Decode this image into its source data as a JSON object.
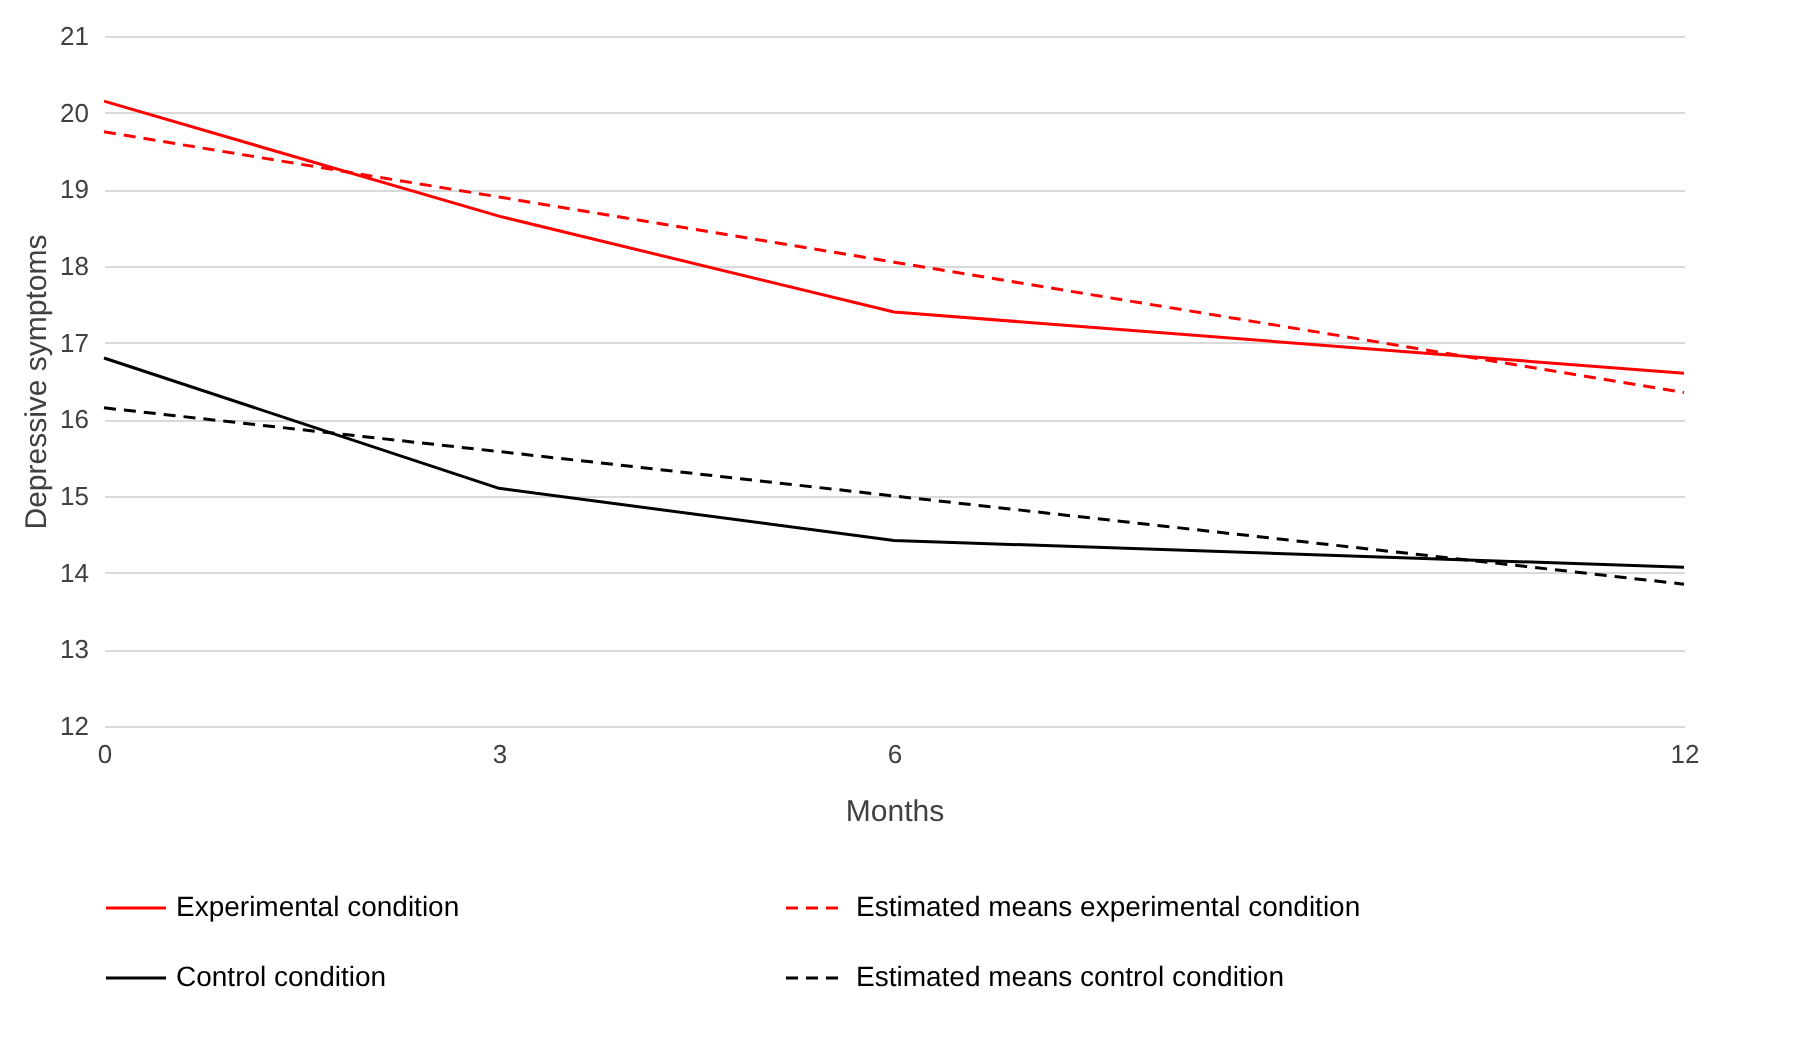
{
  "chart_data": {
    "type": "line",
    "xlabel": "Months",
    "ylabel": "Depressive symptoms",
    "x": [
      0,
      3,
      6,
      12
    ],
    "xlim": [
      0,
      12
    ],
    "xticks": [
      0,
      3,
      6,
      12
    ],
    "ylim": [
      12,
      21
    ],
    "yticks": [
      12,
      13,
      14,
      15,
      16,
      17,
      18,
      19,
      20,
      21
    ],
    "grid": "y",
    "legend": "bottom",
    "marker": "none",
    "series": [
      {
        "name": "Experimental condition",
        "color": "#ff0000",
        "line_style": "solid",
        "values": [
          20.15,
          18.65,
          17.4,
          16.6
        ]
      },
      {
        "name": "Estimated means experimental condition",
        "color": "#ff0000",
        "line_style": "dashed",
        "values": [
          19.75,
          18.9,
          18.05,
          16.35
        ]
      },
      {
        "name": "Control condition",
        "color": "#000000",
        "line_style": "solid",
        "values": [
          16.8,
          15.1,
          14.42,
          14.07
        ]
      },
      {
        "name": "Estimated means control condition",
        "color": "#000000",
        "line_style": "dashed",
        "values": [
          16.15,
          15.58,
          15.0,
          13.85
        ]
      }
    ]
  }
}
